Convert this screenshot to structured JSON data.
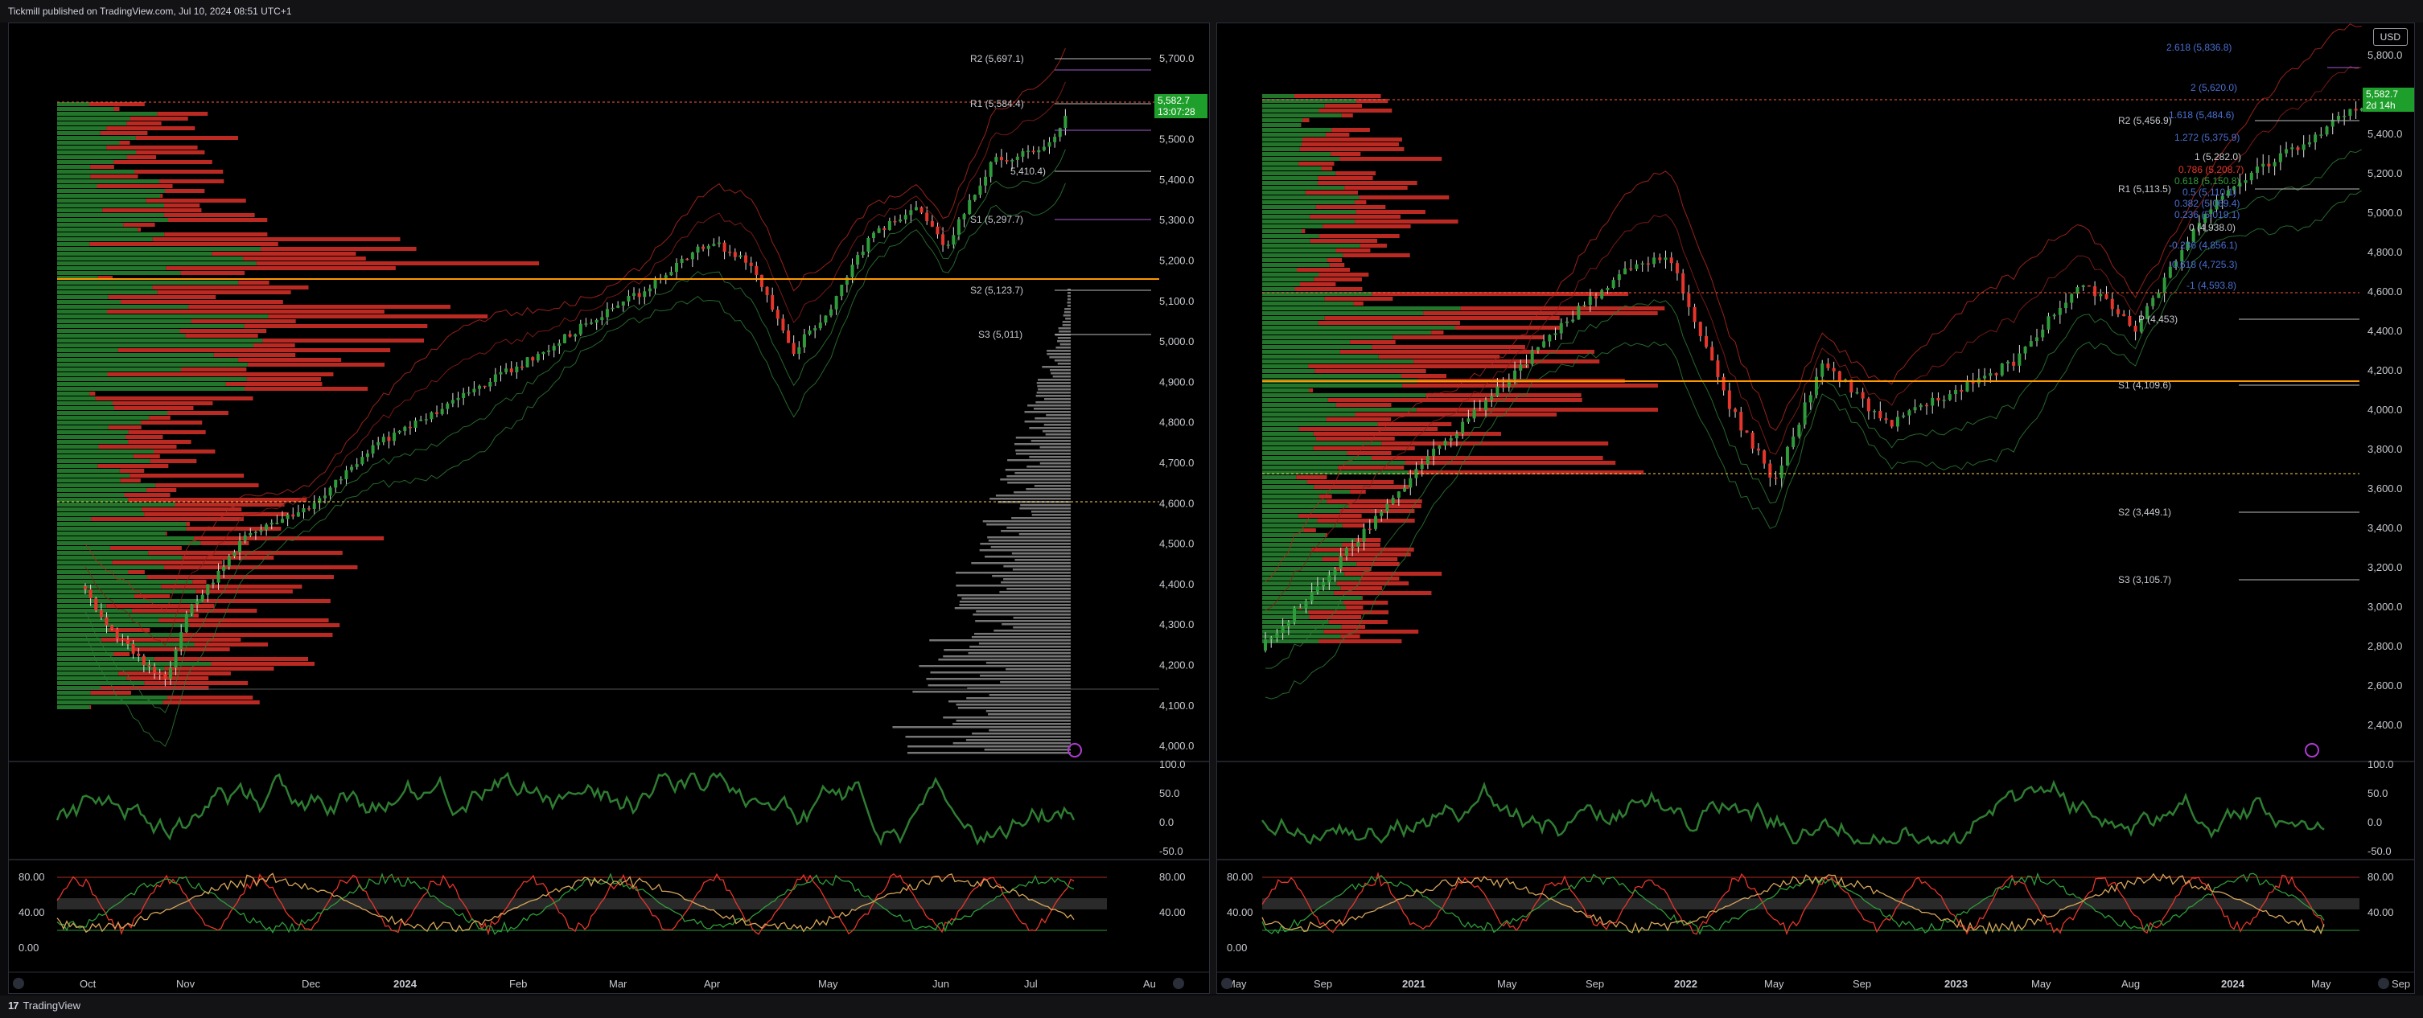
{
  "header": {
    "published": "Tickmill published on TradingView.com, Jul 10, 2024 08:51 UTC+1"
  },
  "footer": {
    "brand": "TradingView",
    "logo": "17"
  },
  "colors": {
    "up": "#2e9c3a",
    "down": "#e8352b",
    "orange": "#ff9800",
    "grid": "#1a1a1a",
    "axis_text": "#c7c9cf"
  },
  "left_chart": {
    "price_ticks": [
      "5,700.0",
      "5,600.0",
      "5,500.0",
      "5,400.0",
      "5,300.0",
      "5,200.0",
      "5,100.0",
      "5,000.0",
      "4,900.0",
      "4,800.0",
      "4,700.0",
      "4,600.0",
      "4,500.0",
      "4,400.0",
      "4,300.0",
      "4,200.0",
      "4,100.0",
      "4,000.0"
    ],
    "pivots": [
      "R2 (5,697.1)",
      "R1 (5,584.4)",
      "5,410.4)",
      "S1 (5,297.7)",
      "S2 (5,123.7)",
      "S3 (5,011)"
    ],
    "last_price": "5,582.7",
    "countdown": "13:07:28",
    "time_ticks": [
      "Oct",
      "Nov",
      "Dec",
      "2024",
      "Feb",
      "Mar",
      "Apr",
      "May",
      "Jun",
      "Jul",
      "Au"
    ],
    "rsi_ticks": [
      "100.0",
      "50.0",
      "0.0",
      "-50.0"
    ],
    "stoch_ticks": [
      "80.00",
      "40.00",
      "0.00"
    ],
    "stoch_ticks_right": [
      "80.00",
      "40.00"
    ]
  },
  "right_chart": {
    "currency": "USD",
    "price_ticks": [
      "5,800.0",
      "5,600.0",
      "5,400.0",
      "5,200.0",
      "5,000.0",
      "4,800.0",
      "4,600.0",
      "4,400.0",
      "4,200.0",
      "4,000.0",
      "3,800.0",
      "3,600.0",
      "3,400.0",
      "3,200.0",
      "3,000.0",
      "2,800.0",
      "2,600.0",
      "2,400.0"
    ],
    "fib_labels": [
      "2.618 (5,836.8)",
      "2 (5,620.0)",
      "1.618 (5,484.6)",
      "1.272 (5,375.9)",
      "1 (5,282.0)",
      "0.786 (5,208.7)",
      "0.618 (5,150.8)",
      "0.5 (5,110.1)",
      "0.382 (5,069.4)",
      "0.236 (5,019.1)",
      "0 (4,938.0)",
      "-0.236 (4,856.1)",
      "-0.618 (4,725.3)",
      "-1 (4,593.8)"
    ],
    "pivots": [
      "R2 (5,456.9)",
      "R1 (5,113.5)",
      "P (4,453)",
      "S1 (4,109.6)",
      "S2 (3,449.1)",
      "S3 (3,105.7)"
    ],
    "last_price": "5,582.7",
    "countdown": "2d 14h",
    "time_ticks": [
      "May",
      "Sep",
      "2021",
      "May",
      "Sep",
      "2022",
      "May",
      "Sep",
      "2023",
      "May",
      "Aug",
      "2024",
      "May",
      "Sep"
    ],
    "rsi_ticks": [
      "100.0",
      "50.0",
      "0.0",
      "-50.0"
    ],
    "stoch_ticks": [
      "80.00",
      "40.00",
      "0.00"
    ],
    "stoch_ticks_right": [
      "80.00",
      "40.00"
    ]
  }
}
